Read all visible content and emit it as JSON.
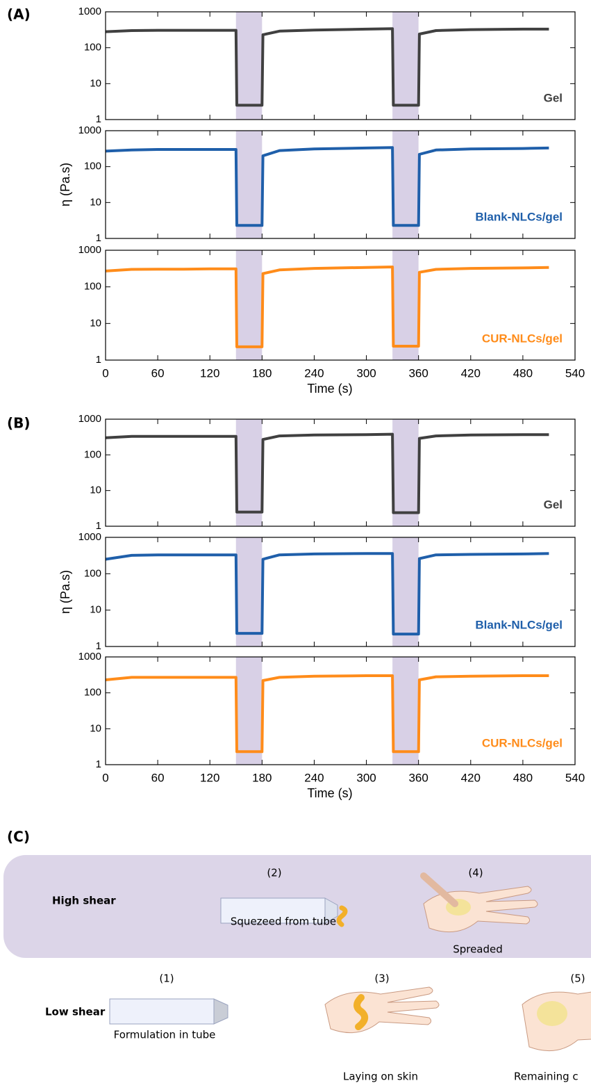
{
  "panel_labels": [
    "(A)",
    "(B)"
  ],
  "chart_data": [
    {
      "type": "line",
      "log_y": true,
      "xlim": [
        0,
        540
      ],
      "ylim": [
        1,
        1000
      ],
      "xticks": [
        0,
        60,
        120,
        180,
        240,
        300,
        360,
        420,
        480,
        540
      ],
      "yticks": [
        1,
        10,
        100,
        1000
      ],
      "highlights": [
        [
          150,
          180
        ],
        [
          330,
          360
        ]
      ],
      "highlight_color": "#d8d0e6",
      "x": [
        0,
        30,
        60,
        90,
        120,
        150,
        151,
        180,
        181,
        200,
        240,
        300,
        330,
        331,
        360,
        361,
        380,
        420,
        480,
        510
      ],
      "series": [
        {
          "name": "Gel",
          "color": "#404040",
          "values": [
            280,
            300,
            305,
            305,
            305,
            305,
            2.5,
            2.5,
            230,
            290,
            310,
            330,
            340,
            2.5,
            2.5,
            240,
            300,
            320,
            330,
            330
          ]
        }
      ]
    },
    {
      "type": "line",
      "log_y": true,
      "xlim": [
        0,
        540
      ],
      "ylim": [
        1,
        1000
      ],
      "xticks": [
        0,
        60,
        120,
        180,
        240,
        300,
        360,
        420,
        480,
        540
      ],
      "yticks": [
        1,
        10,
        100,
        1000
      ],
      "ylabel": "η (Pa.s)",
      "highlights": [
        [
          150,
          180
        ],
        [
          330,
          360
        ]
      ],
      "highlight_color": "#d8d0e6",
      "x": [
        0,
        30,
        60,
        90,
        120,
        150,
        151,
        180,
        181,
        200,
        240,
        300,
        330,
        331,
        360,
        361,
        380,
        420,
        480,
        510
      ],
      "series": [
        {
          "name": "Blank-NLCs/gel",
          "color": "#1f5faa",
          "values": [
            270,
            290,
            300,
            300,
            300,
            300,
            2.3,
            2.3,
            200,
            280,
            310,
            330,
            340,
            2.3,
            2.3,
            220,
            290,
            310,
            320,
            330
          ]
        }
      ]
    },
    {
      "type": "line",
      "log_y": true,
      "xlim": [
        0,
        540
      ],
      "ylim": [
        1,
        1000
      ],
      "xticks": [
        0,
        60,
        120,
        180,
        240,
        300,
        360,
        420,
        480,
        540
      ],
      "yticks": [
        1,
        10,
        100,
        1000
      ],
      "xlabel": "Time (s)",
      "highlights": [
        [
          150,
          180
        ],
        [
          330,
          360
        ]
      ],
      "highlight_color": "#d8d0e6",
      "x": [
        0,
        30,
        60,
        90,
        120,
        150,
        151,
        180,
        181,
        200,
        240,
        300,
        330,
        331,
        360,
        361,
        380,
        420,
        480,
        510
      ],
      "series": [
        {
          "name": "CUR-NLCs/gel",
          "color": "#ff8c1a",
          "values": [
            270,
            300,
            305,
            305,
            310,
            310,
            2.3,
            2.3,
            230,
            290,
            320,
            340,
            350,
            2.4,
            2.4,
            250,
            300,
            320,
            330,
            340
          ]
        }
      ]
    },
    {
      "type": "line",
      "log_y": true,
      "xlim": [
        0,
        540
      ],
      "ylim": [
        1,
        1000
      ],
      "xticks": [
        0,
        60,
        120,
        180,
        240,
        300,
        360,
        420,
        480,
        540
      ],
      "yticks": [
        1,
        10,
        100,
        1000
      ],
      "highlights": [
        [
          150,
          180
        ],
        [
          330,
          360
        ]
      ],
      "highlight_color": "#d8d0e6",
      "x": [
        0,
        30,
        60,
        90,
        120,
        150,
        151,
        180,
        181,
        200,
        240,
        300,
        330,
        331,
        360,
        361,
        380,
        420,
        480,
        510
      ],
      "series": [
        {
          "name": "Gel",
          "color": "#404040",
          "values": [
            300,
            330,
            330,
            330,
            330,
            330,
            2.5,
            2.5,
            270,
            340,
            360,
            370,
            380,
            2.4,
            2.4,
            290,
            340,
            360,
            370,
            370
          ]
        }
      ]
    },
    {
      "type": "line",
      "log_y": true,
      "xlim": [
        0,
        540
      ],
      "ylim": [
        1,
        1000
      ],
      "xticks": [
        0,
        60,
        120,
        180,
        240,
        300,
        360,
        420,
        480,
        540
      ],
      "yticks": [
        1,
        10,
        100,
        1000
      ],
      "ylabel": "η (Pa.s)",
      "highlights": [
        [
          150,
          180
        ],
        [
          330,
          360
        ]
      ],
      "highlight_color": "#d8d0e6",
      "x": [
        0,
        30,
        60,
        90,
        120,
        150,
        151,
        180,
        181,
        200,
        240,
        300,
        330,
        331,
        360,
        361,
        380,
        420,
        480,
        510
      ],
      "series": [
        {
          "name": "Blank-NLCs/gel",
          "color": "#1f5faa",
          "values": [
            250,
            320,
            330,
            330,
            330,
            330,
            2.3,
            2.3,
            250,
            330,
            350,
            360,
            360,
            2.2,
            2.2,
            260,
            330,
            340,
            350,
            360
          ]
        }
      ]
    },
    {
      "type": "line",
      "log_y": true,
      "xlim": [
        0,
        540
      ],
      "ylim": [
        1,
        1000
      ],
      "xticks": [
        0,
        60,
        120,
        180,
        240,
        300,
        360,
        420,
        480,
        540
      ],
      "yticks": [
        1,
        10,
        100,
        1000
      ],
      "xlabel": "Time (s)",
      "highlights": [
        [
          150,
          180
        ],
        [
          330,
          360
        ]
      ],
      "highlight_color": "#d8d0e6",
      "x": [
        0,
        30,
        60,
        90,
        120,
        150,
        151,
        180,
        181,
        200,
        240,
        300,
        330,
        331,
        360,
        361,
        380,
        420,
        480,
        510
      ],
      "series": [
        {
          "name": "CUR-NLCs/gel",
          "color": "#ff8c1a",
          "values": [
            230,
            270,
            270,
            270,
            270,
            270,
            2.3,
            2.3,
            220,
            270,
            290,
            300,
            300,
            2.3,
            2.3,
            230,
            280,
            290,
            300,
            300
          ]
        }
      ]
    }
  ],
  "diagram": {
    "label": "(C)",
    "rows": [
      {
        "label": "High shear",
        "steps": [
          {
            "number": "(2)",
            "caption": "Squezeed from tube"
          },
          {
            "number": "(4)",
            "caption": "Spreaded"
          }
        ]
      },
      {
        "label": "Low shear",
        "steps": [
          {
            "number": "(1)",
            "caption": "Formulation in tube"
          },
          {
            "number": "(3)",
            "caption": "Laying on skin"
          },
          {
            "number": "(5)",
            "caption": "Remaining c"
          }
        ]
      }
    ]
  }
}
